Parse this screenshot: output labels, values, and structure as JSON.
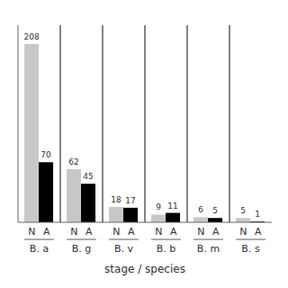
{
  "chart_data": {
    "type": "bar",
    "xlabel": "stage / species",
    "categories": [
      "B. a",
      "B. g",
      "B. v",
      "B. b",
      "B. m",
      "B. s"
    ],
    "series": [
      {
        "name": "N",
        "color": "#c8c8c8",
        "values": [
          208,
          62,
          18,
          9,
          6,
          5
        ]
      },
      {
        "name": "A",
        "color": "#000000",
        "values": [
          70,
          45,
          17,
          11,
          5,
          1
        ]
      }
    ],
    "ylim": [
      0,
      230
    ],
    "data_labels": true,
    "tick_labels": "x",
    "grid": false
  }
}
